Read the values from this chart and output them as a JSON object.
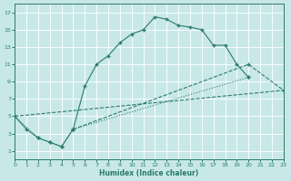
{
  "xlabel": "Humidex (Indice chaleur)",
  "bg_color": "#c8e8e8",
  "grid_color": "#b8d8d8",
  "line_color": "#2a7a6a",
  "xlim": [
    0,
    23
  ],
  "ylim": [
    0,
    18
  ],
  "xticks": [
    0,
    1,
    2,
    3,
    4,
    5,
    6,
    7,
    8,
    9,
    10,
    11,
    12,
    13,
    14,
    15,
    16,
    17,
    18,
    19,
    20,
    21,
    22,
    23
  ],
  "yticks": [
    1,
    3,
    5,
    7,
    9,
    11,
    13,
    15,
    17
  ],
  "curve1_x": [
    0,
    1,
    2,
    3,
    4,
    5,
    6,
    7,
    8,
    9,
    10,
    11,
    12,
    13,
    14,
    15,
    16,
    17,
    18,
    19,
    20
  ],
  "curve1_y": [
    5,
    3.5,
    2.5,
    2.0,
    1.5,
    3.5,
    8.5,
    11.0,
    12.0,
    13.5,
    14.5,
    15.0,
    16.5,
    16.2,
    15.5,
    15.3,
    15.0,
    13.2,
    13.2,
    11.0,
    9.5
  ],
  "curve2_x": [
    0,
    2,
    3,
    4,
    5,
    20
  ],
  "curve2_y": [
    5,
    2.5,
    2.0,
    1.5,
    3.5,
    9.5
  ],
  "line1_x": [
    0,
    23
  ],
  "line1_y": [
    5,
    8.0
  ],
  "line2_x": [
    5,
    20,
    23
  ],
  "line2_y": [
    3.5,
    11.0,
    8.0
  ]
}
